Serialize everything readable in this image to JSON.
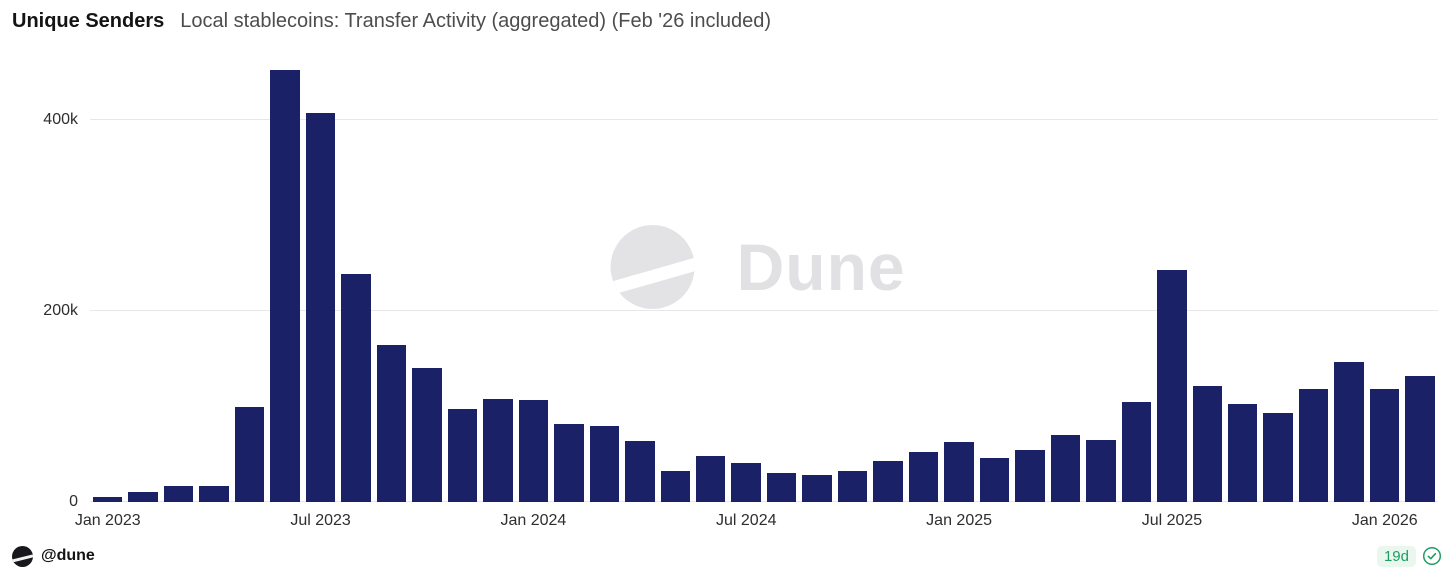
{
  "header": {
    "title": "Unique Senders",
    "subtitle": "Local stablecoins: Transfer Activity (aggregated) (Feb '26 included)"
  },
  "watermark": {
    "text": "Dune"
  },
  "footer": {
    "handle": "@dune",
    "badge": "19d",
    "badge_color": "#1f9d62",
    "badge_bg": "#e9f7ef"
  },
  "chart_data": {
    "type": "bar",
    "title": "Unique Senders — Local stablecoins: Transfer Activity (aggregated) (Feb '26 included)",
    "xlabel": "",
    "ylabel": "Unique senders",
    "ylim": [
      0,
      465000
    ],
    "grid": "horizontal",
    "legend": "none",
    "bar_color": "#1b2167",
    "x": [
      "Jan 2023",
      "Feb 2023",
      "Mar 2023",
      "Apr 2023",
      "May 2023",
      "Jun 2023",
      "Jul 2023",
      "Aug 2023",
      "Sep 2023",
      "Oct 2023",
      "Nov 2023",
      "Dec 2023",
      "Jan 2024",
      "Feb 2024",
      "Mar 2024",
      "Apr 2024",
      "May 2024",
      "Jun 2024",
      "Jul 2024",
      "Aug 2024",
      "Sep 2024",
      "Oct 2024",
      "Nov 2024",
      "Dec 2024",
      "Jan 2025",
      "Feb 2025",
      "Mar 2025",
      "Apr 2025",
      "May 2025",
      "Jun 2025",
      "Jul 2025",
      "Aug 2025",
      "Sep 2025",
      "Oct 2025",
      "Nov 2025",
      "Dec 2025",
      "Jan 2026",
      "Feb 2026"
    ],
    "values": [
      5000,
      10000,
      17000,
      17000,
      100000,
      452000,
      407000,
      239000,
      164000,
      140000,
      97000,
      108000,
      107000,
      82000,
      80000,
      64000,
      33000,
      48000,
      41000,
      30000,
      28000,
      32000,
      43000,
      52000,
      63000,
      46000,
      54000,
      70000,
      65000,
      105000,
      243000,
      121000,
      103000,
      93000,
      118000,
      147000,
      118000,
      132000
    ],
    "yticks": [
      {
        "label": "0",
        "value": 0
      },
      {
        "label": "200k",
        "value": 200000
      },
      {
        "label": "400k",
        "value": 400000
      }
    ],
    "xticks": [
      {
        "label": "Jan 2023",
        "index": 0
      },
      {
        "label": "Jul 2023",
        "index": 6
      },
      {
        "label": "Jan 2024",
        "index": 12
      },
      {
        "label": "Jul 2024",
        "index": 18
      },
      {
        "label": "Jan 2025",
        "index": 24
      },
      {
        "label": "Jul 2025",
        "index": 30
      },
      {
        "label": "Jan 2026",
        "index": 36
      }
    ]
  }
}
